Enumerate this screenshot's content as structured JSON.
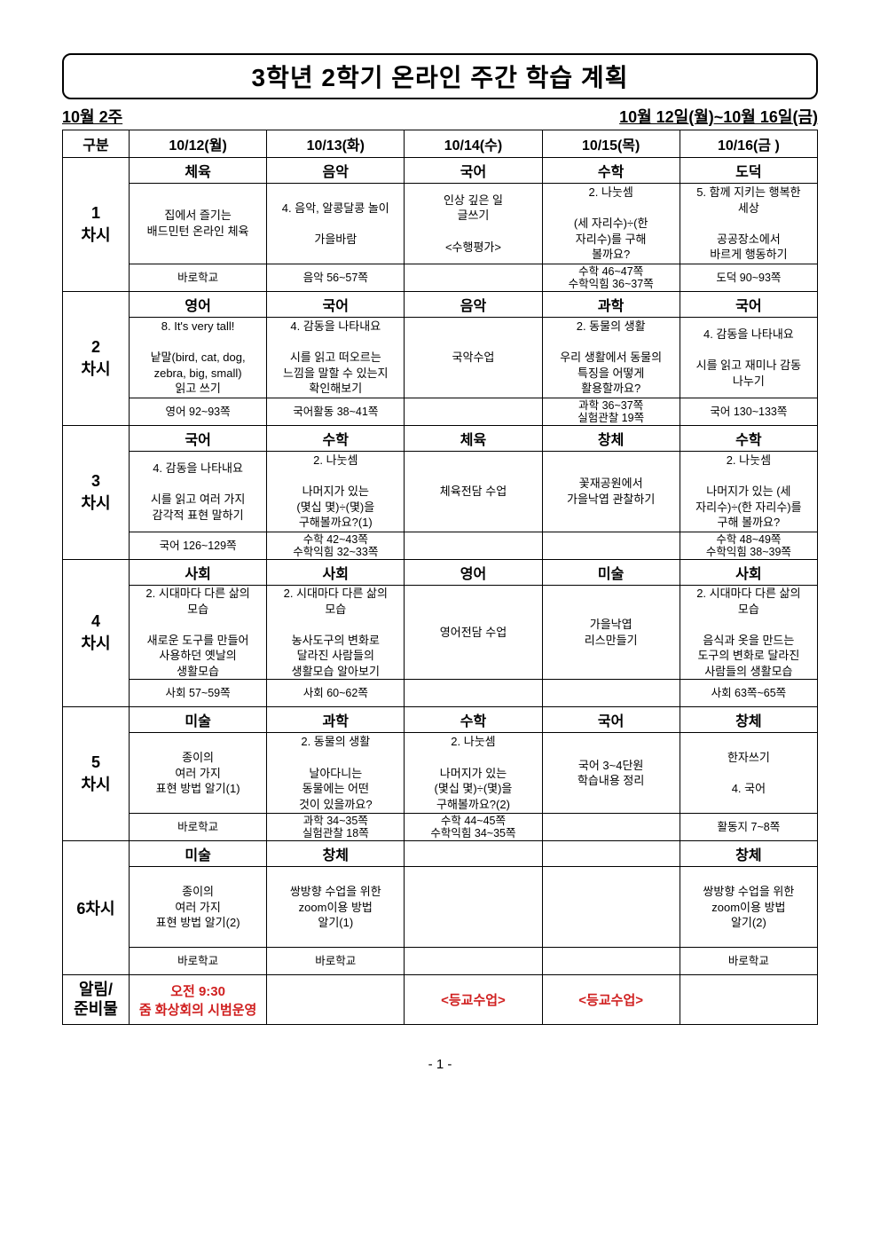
{
  "title": "3학년 2학기 온라인 주간 학습 계획",
  "week_label": "10월 2주",
  "date_range": "10월 12일(월)~10월 16일(금)",
  "col0_header": "구분",
  "day_headers": [
    "10/12(월)",
    "10/13(화)",
    "10/14(수)",
    "10/15(목)",
    "10/16(금 )"
  ],
  "periods": [
    {
      "label": "1\n차시",
      "cells": [
        {
          "subj": "체육",
          "desc": [
            "집에서 즐기는",
            "배드민턴 온라인 체육"
          ],
          "ref": [
            "바로학교"
          ]
        },
        {
          "subj": "음악",
          "desc": [
            "4. 음악, 알콩달콩 놀이",
            "",
            "가을바람"
          ],
          "ref": [
            "음악 56~57쪽"
          ]
        },
        {
          "subj": "국어",
          "desc": [
            "인상 깊은 일",
            "글쓰기",
            "",
            "<수행평가>"
          ],
          "ref": [
            ""
          ]
        },
        {
          "subj": "수학",
          "desc": [
            "2. 나눗셈",
            "",
            "(세 자리수)÷(한",
            "자리수)를 구해",
            "볼까요?"
          ],
          "ref": [
            "수학 46~47쪽",
            "수학익힘 36~37쪽"
          ]
        },
        {
          "subj": "도덕",
          "desc": [
            "5. 함께 지키는 행복한",
            "세상",
            "",
            "공공장소에서",
            "바르게 행동하기"
          ],
          "ref": [
            "도덕 90~93쪽"
          ]
        }
      ]
    },
    {
      "label": "2\n차시",
      "cells": [
        {
          "subj": "영어",
          "desc": [
            "8. It's very tall!",
            "",
            "낱말(bird, cat, dog,",
            "zebra, big, small)",
            "읽고 쓰기"
          ],
          "ref": [
            "영어 92~93쪽"
          ]
        },
        {
          "subj": "국어",
          "desc": [
            "4. 감동을 나타내요",
            "",
            "시를 읽고 떠오르는",
            "느낌을 말할 수 있는지",
            "확인해보기"
          ],
          "ref": [
            "국어활동 38~41쪽"
          ]
        },
        {
          "subj": "음악",
          "desc": [
            "국악수업"
          ],
          "ref": [
            ""
          ]
        },
        {
          "subj": "과학",
          "desc": [
            "2. 동물의 생활",
            "",
            "우리 생활에서 동물의",
            "특징을 어떻게",
            "활용할까요?"
          ],
          "ref": [
            "과학 36~37쪽",
            "실험관찰 19쪽"
          ]
        },
        {
          "subj": "국어",
          "desc": [
            "4. 감동을 나타내요",
            "",
            "시를 읽고 재미나 감동",
            "나누기"
          ],
          "ref": [
            "국어 130~133쪽"
          ]
        }
      ]
    },
    {
      "label": "3\n차시",
      "cells": [
        {
          "subj": "국어",
          "desc": [
            "4. 감동을 나타내요",
            "",
            "시를 읽고 여러 가지",
            "감각적 표현 말하기"
          ],
          "ref": [
            "국어 126~129쪽"
          ]
        },
        {
          "subj": "수학",
          "desc": [
            "2. 나눗셈",
            "",
            "나머지가 있는",
            "(몇십 몇)÷(몇)을",
            "구해볼까요?(1)"
          ],
          "ref": [
            "수학 42~43쪽",
            "수학익힘 32~33쪽"
          ]
        },
        {
          "subj": "체육",
          "desc": [
            "체육전담 수업"
          ],
          "ref": [
            ""
          ]
        },
        {
          "subj": "창체",
          "desc": [
            "꽃재공원에서",
            "가을낙엽 관찰하기"
          ],
          "ref": [
            ""
          ]
        },
        {
          "subj": "수학",
          "desc": [
            "2. 나눗셈",
            "",
            "나머지가 있는 (세",
            "자리수)÷(한 자리수)를",
            "구해 볼까요?"
          ],
          "ref": [
            "수학 48~49쪽",
            "수학익힘 38~39쪽"
          ]
        }
      ]
    },
    {
      "label": "4\n차시",
      "cells": [
        {
          "subj": "사회",
          "desc": [
            "2. 시대마다 다른 삶의",
            "모습",
            "",
            "새로운 도구를 만들어",
            "사용하던 옛날의",
            "생활모습"
          ],
          "ref": [
            "사회 57~59쪽"
          ]
        },
        {
          "subj": "사회",
          "desc": [
            "2. 시대마다 다른 삶의",
            "모습",
            "",
            "농사도구의 변화로",
            "달라진 사람들의",
            "생활모습 알아보기"
          ],
          "ref": [
            "사회 60~62쪽"
          ]
        },
        {
          "subj": "영어",
          "desc": [
            "영어전담 수업"
          ],
          "ref": [
            ""
          ]
        },
        {
          "subj": "미술",
          "desc": [
            "가을낙엽",
            "리스만들기"
          ],
          "ref": [
            ""
          ]
        },
        {
          "subj": "사회",
          "desc": [
            "2. 시대마다 다른 삶의",
            "모습",
            "",
            "음식과 옷을 만드는",
            "도구의 변화로 달라진",
            "사람들의 생활모습"
          ],
          "ref": [
            "사회 63쪽~65쪽"
          ]
        }
      ]
    },
    {
      "label": "5\n차시",
      "cells": [
        {
          "subj": "미술",
          "desc": [
            "종이의",
            "여러 가지",
            "표현 방법 알기(1)"
          ],
          "ref": [
            "바로학교"
          ]
        },
        {
          "subj": "과학",
          "desc": [
            "2. 동물의 생활",
            "",
            "날아다니는",
            "동물에는 어떤",
            "것이 있을까요?"
          ],
          "ref": [
            "과학 34~35쪽",
            "실험관찰 18쪽"
          ]
        },
        {
          "subj": "수학",
          "desc": [
            "2. 나눗셈",
            "",
            "나머지가 있는",
            "(몇십 몇)÷(몇)을",
            "구해볼까요?(2)"
          ],
          "ref": [
            "수학 44~45쪽",
            "수학익힘 34~35쪽"
          ]
        },
        {
          "subj": "국어",
          "desc": [
            "국어 3~4단원",
            "학습내용 정리"
          ],
          "ref": [
            ""
          ]
        },
        {
          "subj": "창체",
          "desc": [
            "한자쓰기",
            "",
            "4. 국어"
          ],
          "ref": [
            "활동지 7~8쪽"
          ]
        }
      ]
    },
    {
      "label": "6차시",
      "cells": [
        {
          "subj": "미술",
          "desc": [
            "종이의",
            "여러 가지",
            "표현 방법 알기(2)"
          ],
          "ref": [
            "바로학교"
          ]
        },
        {
          "subj": "창체",
          "desc": [
            "쌍방향 수업을 위한",
            "zoom이용 방법",
            "알기(1)"
          ],
          "ref": [
            "바로학교"
          ]
        },
        {
          "subj": "",
          "desc": [],
          "ref": [
            ""
          ]
        },
        {
          "subj": "",
          "desc": [],
          "ref": [
            ""
          ]
        },
        {
          "subj": "창체",
          "desc": [
            "쌍방향 수업을 위한",
            "zoom이용 방법",
            "알기(2)"
          ],
          "ref": [
            "바로학교"
          ]
        }
      ]
    }
  ],
  "notice_label": "알림/\n준비물",
  "notice_cells": [
    {
      "lines": [
        "오전 9:30",
        "줌 화상회의 시범운영"
      ],
      "red": true
    },
    {
      "lines": [
        ""
      ],
      "red": false
    },
    {
      "lines": [
        "<등교수업>"
      ],
      "red": true
    },
    {
      "lines": [
        "<등교수업>"
      ],
      "red": true
    },
    {
      "lines": [
        ""
      ],
      "red": false
    }
  ],
  "page_number": "- 1 -"
}
